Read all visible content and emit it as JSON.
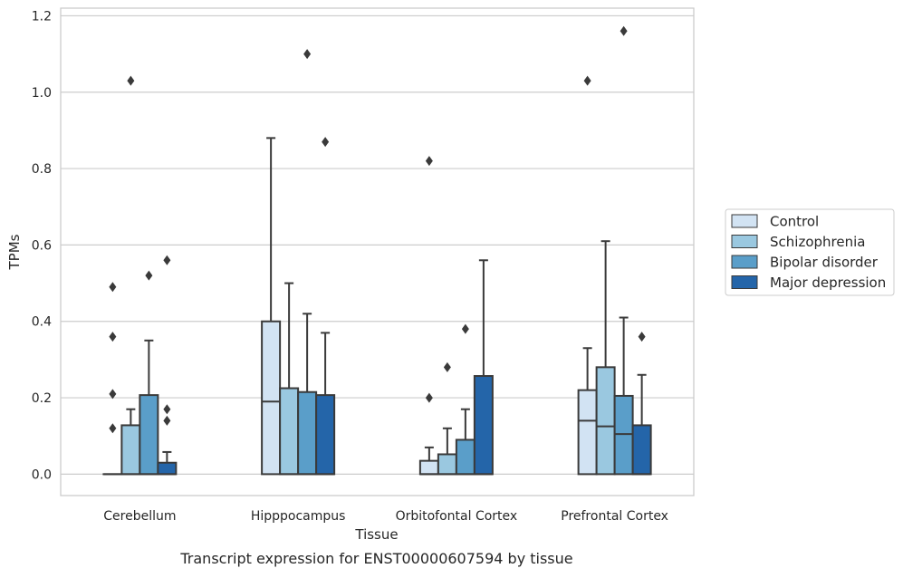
{
  "chart_data": {
    "type": "box",
    "title": "",
    "caption": "Transcript expression for ENST00000607594 by tissue",
    "xlabel": "Tissue",
    "ylabel": "TPMs",
    "ylim": [
      -0.056,
      1.22
    ],
    "yticks": [
      "0.0",
      "0.2",
      "0.4",
      "0.6",
      "0.8",
      "1.0",
      "1.2"
    ],
    "grid": "horizontal",
    "legend_position": "right",
    "categories": [
      "Cerebellum",
      "Hipppocampus",
      "Orbitofontal Cortex",
      "Prefrontal Cortex"
    ],
    "series": [
      {
        "name": "Control",
        "color": "#d2e3f3",
        "boxes": [
          {
            "q1": 0.0,
            "median": 0.0,
            "q3": 0.0,
            "whisker_low": 0.0,
            "whisker_high": 0.0,
            "outliers": [
              0.12,
              0.21,
              0.36,
              0.49
            ]
          },
          {
            "q1": 0.0,
            "median": 0.19,
            "q3": 0.4,
            "whisker_low": 0.0,
            "whisker_high": 0.88,
            "outliers": []
          },
          {
            "q1": 0.0,
            "median": 0.0,
            "q3": 0.035,
            "whisker_low": 0.0,
            "whisker_high": 0.07,
            "outliers": [
              0.2,
              0.82
            ]
          },
          {
            "q1": 0.0,
            "median": 0.14,
            "q3": 0.22,
            "whisker_low": 0.0,
            "whisker_high": 0.33,
            "outliers": [
              1.03
            ]
          }
        ]
      },
      {
        "name": "Schizophrenia",
        "color": "#9ac8e0",
        "boxes": [
          {
            "q1": 0.0,
            "median": 0.0,
            "q3": 0.128,
            "whisker_low": 0.0,
            "whisker_high": 0.17,
            "outliers": [
              1.03
            ]
          },
          {
            "q1": 0.0,
            "median": 0.0,
            "q3": 0.225,
            "whisker_low": 0.0,
            "whisker_high": 0.5,
            "outliers": []
          },
          {
            "q1": 0.0,
            "median": 0.0,
            "q3": 0.052,
            "whisker_low": 0.0,
            "whisker_high": 0.12,
            "outliers": [
              0.28
            ]
          },
          {
            "q1": 0.0,
            "median": 0.125,
            "q3": 0.28,
            "whisker_low": 0.0,
            "whisker_high": 0.61,
            "outliers": []
          }
        ]
      },
      {
        "name": "Bipolar disorder",
        "color": "#5a9ec9",
        "boxes": [
          {
            "q1": 0.0,
            "median": 0.0,
            "q3": 0.207,
            "whisker_low": 0.0,
            "whisker_high": 0.35,
            "outliers": [
              0.52
            ]
          },
          {
            "q1": 0.0,
            "median": 0.0,
            "q3": 0.215,
            "whisker_low": 0.0,
            "whisker_high": 0.42,
            "outliers": [
              1.1
            ]
          },
          {
            "q1": 0.0,
            "median": 0.0,
            "q3": 0.09,
            "whisker_low": 0.0,
            "whisker_high": 0.17,
            "outliers": [
              0.38
            ]
          },
          {
            "q1": 0.0,
            "median": 0.105,
            "q3": 0.205,
            "whisker_low": 0.0,
            "whisker_high": 0.41,
            "outliers": [
              1.16
            ]
          }
        ]
      },
      {
        "name": "Major depression",
        "color": "#2465a9",
        "boxes": [
          {
            "q1": 0.0,
            "median": 0.0,
            "q3": 0.03,
            "whisker_low": 0.0,
            "whisker_high": 0.058,
            "outliers": [
              0.14,
              0.17,
              0.56
            ]
          },
          {
            "q1": 0.0,
            "median": 0.0,
            "q3": 0.207,
            "whisker_low": 0.0,
            "whisker_high": 0.37,
            "outliers": [
              0.87
            ]
          },
          {
            "q1": 0.0,
            "median": 0.0,
            "q3": 0.257,
            "whisker_low": 0.0,
            "whisker_high": 0.56,
            "outliers": []
          },
          {
            "q1": 0.0,
            "median": 0.0,
            "q3": 0.128,
            "whisker_low": 0.0,
            "whisker_high": 0.26,
            "outliers": [
              0.36
            ]
          }
        ]
      }
    ]
  }
}
